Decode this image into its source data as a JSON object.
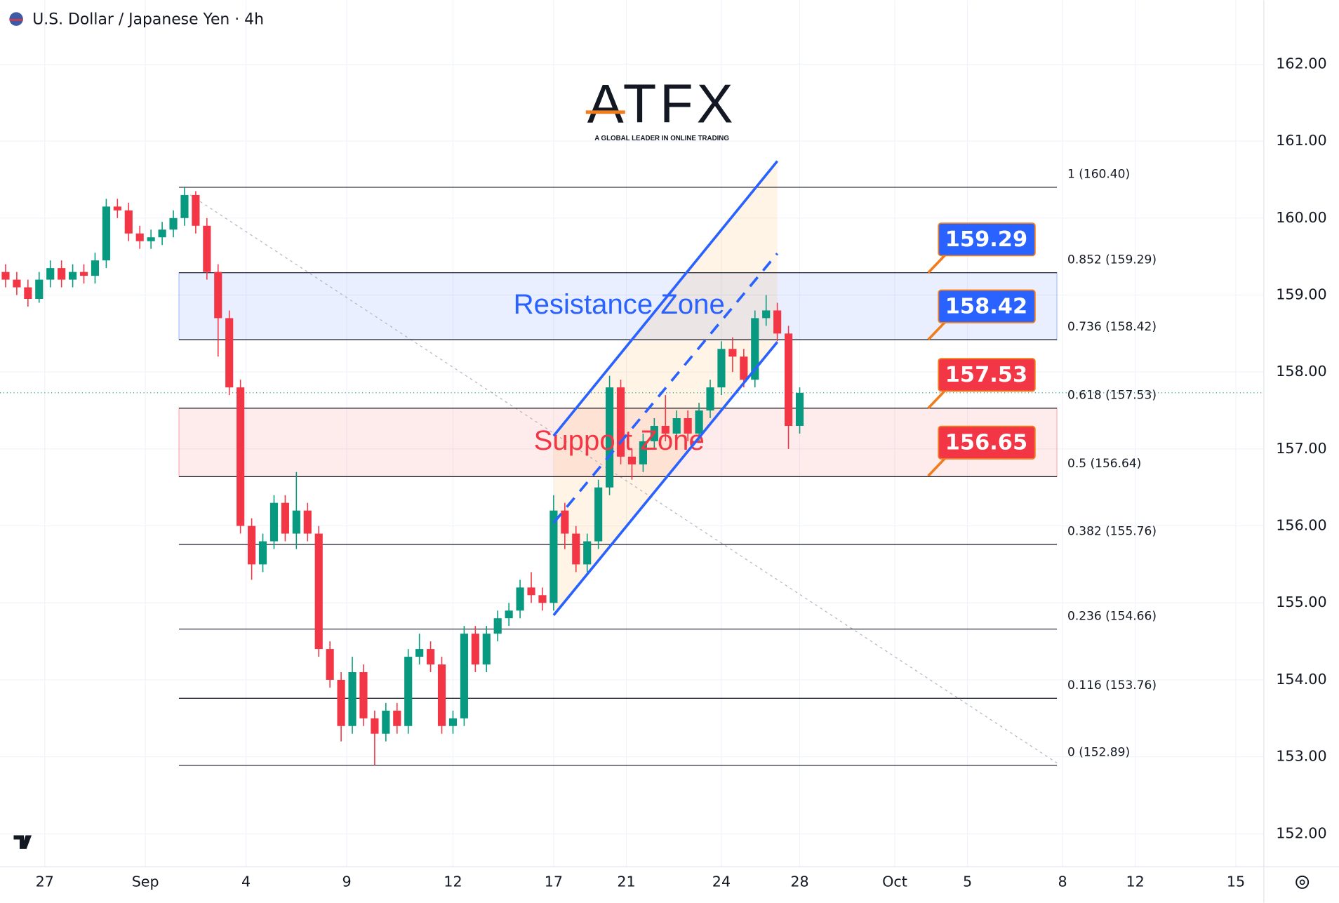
{
  "chart_data": {
    "type": "candlestick",
    "title": "U.S. Dollar / Japanese Yen · 4h",
    "up_color": "#089981",
    "down_color": "#f23645",
    "grid": true,
    "xlim": [
      -7,
      219
    ],
    "ylim": [
      151.57,
      162.83
    ],
    "yticks": [
      {
        "value": 162,
        "label": "162.00"
      },
      {
        "value": 161,
        "label": "161.00"
      },
      {
        "value": 160,
        "label": "160.00"
      },
      {
        "value": 159,
        "label": "159.00"
      },
      {
        "value": 158,
        "label": "158.00"
      },
      {
        "value": 157,
        "label": "157.00"
      },
      {
        "value": 156,
        "label": "156.00"
      },
      {
        "value": 155,
        "label": "155.00"
      },
      {
        "value": 154,
        "label": "154.00"
      },
      {
        "value": 153,
        "label": "153.00"
      },
      {
        "value": 152,
        "label": "152.00"
      }
    ],
    "xticks": [
      {
        "value": 1,
        "label": "27"
      },
      {
        "value": 19,
        "label": "Sep"
      },
      {
        "value": 37,
        "label": "4"
      },
      {
        "value": 55,
        "label": "9"
      },
      {
        "value": 74,
        "label": "12"
      },
      {
        "value": 92,
        "label": "17"
      },
      {
        "value": 105,
        "label": "21"
      },
      {
        "value": 122,
        "label": "24"
      },
      {
        "value": 136,
        "label": "28"
      },
      {
        "value": 153,
        "label": "Oct"
      },
      {
        "value": 166,
        "label": "5"
      },
      {
        "value": 183,
        "label": "8"
      },
      {
        "value": 196,
        "label": "12"
      },
      {
        "value": 214,
        "label": "15"
      }
    ],
    "x": [
      -6,
      -4,
      -2,
      0,
      2,
      4,
      6,
      8,
      10,
      12,
      14,
      16,
      18,
      20,
      22,
      24,
      26,
      28,
      30,
      32,
      34,
      36,
      38,
      40,
      42,
      44,
      46,
      48,
      50,
      52,
      54,
      56,
      58,
      60,
      62,
      64,
      66,
      68,
      70,
      72,
      74,
      76,
      78,
      80,
      82,
      84,
      86,
      88,
      90,
      92,
      94,
      96,
      98,
      100,
      102,
      104,
      106,
      108,
      110,
      112,
      114,
      116,
      118,
      120,
      122,
      124,
      126,
      128,
      130,
      132,
      134,
      136
    ],
    "open": [
      159.3,
      159.2,
      159.1,
      158.95,
      159.2,
      159.35,
      159.2,
      159.3,
      159.25,
      159.45,
      160.15,
      160.1,
      159.8,
      159.7,
      159.75,
      159.85,
      160.0,
      160.3,
      159.9,
      159.3,
      158.7,
      157.8,
      156.0,
      155.5,
      155.8,
      156.3,
      155.9,
      156.2,
      155.9,
      154.4,
      154.0,
      153.4,
      154.1,
      153.5,
      153.3,
      153.6,
      153.4,
      154.3,
      154.4,
      154.2,
      153.4,
      153.5,
      154.6,
      154.2,
      154.6,
      154.8,
      154.9,
      155.2,
      155.1,
      155.0,
      156.2,
      155.9,
      155.5,
      155.8,
      156.5,
      157.8,
      156.9,
      156.8,
      157.1,
      157.3,
      157.2,
      157.4,
      157.2,
      157.5,
      157.8,
      158.3,
      158.2,
      157.9,
      158.7,
      158.8,
      158.5,
      157.3
    ],
    "high": [
      159.4,
      159.3,
      159.2,
      159.3,
      159.45,
      159.45,
      159.4,
      159.4,
      159.55,
      160.25,
      160.25,
      160.2,
      159.9,
      159.85,
      159.95,
      160.1,
      160.4,
      160.35,
      160.0,
      159.4,
      158.8,
      157.9,
      156.1,
      155.9,
      156.4,
      156.4,
      156.7,
      156.3,
      156.0,
      154.5,
      154.1,
      154.3,
      154.2,
      153.6,
      153.7,
      153.7,
      154.4,
      154.6,
      154.5,
      154.3,
      153.6,
      154.7,
      154.7,
      154.7,
      154.9,
      155.0,
      155.3,
      155.4,
      155.2,
      156.4,
      156.3,
      156.0,
      155.9,
      156.6,
      157.95,
      157.9,
      157.0,
      157.2,
      157.4,
      157.7,
      157.5,
      157.5,
      157.6,
      157.9,
      158.4,
      158.45,
      158.3,
      158.8,
      159.0,
      158.9,
      158.6,
      157.8
    ],
    "low": [
      159.1,
      159.0,
      158.85,
      158.9,
      159.1,
      159.1,
      159.1,
      159.15,
      159.15,
      159.35,
      160.0,
      159.7,
      159.6,
      159.6,
      159.65,
      159.75,
      159.9,
      159.8,
      159.2,
      158.2,
      157.7,
      155.9,
      155.3,
      155.4,
      155.7,
      155.8,
      155.7,
      155.8,
      154.3,
      153.9,
      153.2,
      153.3,
      153.4,
      152.89,
      153.2,
      153.3,
      153.3,
      154.2,
      154.1,
      153.3,
      153.3,
      153.4,
      154.1,
      154.1,
      154.5,
      154.7,
      154.8,
      155.0,
      154.9,
      154.9,
      155.7,
      155.4,
      155.4,
      155.7,
      156.4,
      156.8,
      156.6,
      156.7,
      157.0,
      157.1,
      157.1,
      157.1,
      157.1,
      157.4,
      157.7,
      158.0,
      157.8,
      157.8,
      158.6,
      158.4,
      157.0,
      157.2
    ],
    "close": [
      159.2,
      159.1,
      158.95,
      159.2,
      159.35,
      159.2,
      159.3,
      159.25,
      159.45,
      160.15,
      160.1,
      159.8,
      159.7,
      159.75,
      159.85,
      160.0,
      160.3,
      159.9,
      159.3,
      158.7,
      157.8,
      156.0,
      155.5,
      155.8,
      156.3,
      155.9,
      156.2,
      155.9,
      154.4,
      154.0,
      153.4,
      154.1,
      153.5,
      153.3,
      153.6,
      153.4,
      154.3,
      154.4,
      154.2,
      153.4,
      153.5,
      154.6,
      154.2,
      154.6,
      154.8,
      154.9,
      155.2,
      155.1,
      155.0,
      156.2,
      155.9,
      155.5,
      155.8,
      156.5,
      157.8,
      156.9,
      156.8,
      157.1,
      157.3,
      157.2,
      157.4,
      157.2,
      157.5,
      157.8,
      158.3,
      158.2,
      157.9,
      158.7,
      158.8,
      158.5,
      157.3,
      157.73
    ],
    "fib": {
      "x": [
        25,
        182
      ],
      "levels": [
        {
          "label": "1 (160.40)",
          "value": 160.4
        },
        {
          "label": "0.852 (159.29)",
          "value": 159.29
        },
        {
          "label": "0.736 (158.42)",
          "value": 158.42
        },
        {
          "label": "0.618 (157.53)",
          "value": 157.53
        },
        {
          "label": "0.5 (156.64)",
          "value": 156.64
        },
        {
          "label": "0.382 (155.76)",
          "value": 155.76
        },
        {
          "label": "0.236 (154.66)",
          "value": 154.66
        },
        {
          "label": "0.116 (153.76)",
          "value": 153.76
        },
        {
          "label": "0 (152.89)",
          "value": 152.89
        }
      ]
    },
    "zones": [
      {
        "label": "Resistance Zone",
        "low": 158.42,
        "high": 159.29,
        "color": "#2962ff"
      },
      {
        "label": "Support Zone",
        "low": 156.64,
        "high": 157.53,
        "color": "#f23645"
      }
    ],
    "price_tags": [
      {
        "value": 159.29,
        "color": "#2962ff"
      },
      {
        "value": 158.42,
        "color": "#2962ff"
      },
      {
        "value": 157.53,
        "color": "#f23645"
      },
      {
        "value": 156.65,
        "color": "#f23645"
      }
    ],
    "channel": {
      "x": [
        92,
        132
      ],
      "upper": [
        157.17,
        160.74
      ],
      "middle": [
        156.04,
        159.54
      ],
      "lower": [
        154.84,
        158.39
      ]
    },
    "trend_line": {
      "x": [
        27,
        182
      ],
      "y": [
        160.3,
        152.92
      ]
    }
  },
  "logo": {
    "name": "ATFX",
    "tagline": "A GLOBAL LEADER IN ONLINE TRADING"
  }
}
